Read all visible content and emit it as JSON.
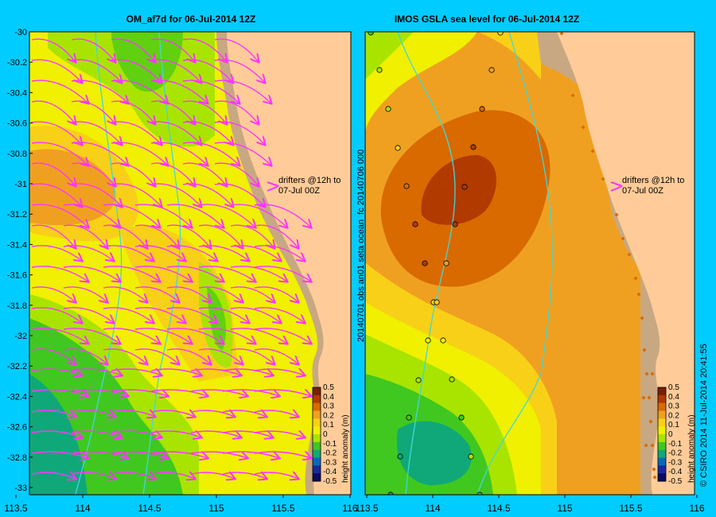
{
  "left_panel": {
    "title": "OM_af7d for 06-Jul-2014 12Z",
    "lat_ticks": [
      "-30",
      "-30.2",
      "-30.4",
      "-30.6",
      "-30.8",
      "-31",
      "-31.2",
      "-31.4",
      "-31.6",
      "-31.8",
      "-32",
      "-32.2",
      "-32.4",
      "-32.6",
      "-32.8",
      "-33"
    ],
    "lon_ticks": [
      "113.5",
      "114",
      "114.5",
      "115",
      "115.5",
      "116"
    ],
    "drifter_note": [
      "drifters @12h to",
      "07-Jul 00Z"
    ],
    "colorbar_label": "height anomaly (m)"
  },
  "right_panel": {
    "title": "IMOS GSLA sea level  for 06-Jul-2014 12Z",
    "lon_ticks": [
      "113.5",
      "114",
      "114.5",
      "115",
      "115.5",
      "116"
    ],
    "side_label": "20140701 obs an01 seta ocean_fc 20140706 000",
    "drifter_note": [
      "drifters @12h to",
      "07-Jul 00Z"
    ],
    "colorbar_label": "height anomaly (m)",
    "credit": "© CSIRO 2014   11-Jul-2014 20:41:55"
  },
  "colorbar": {
    "ticks": [
      "0.5",
      "0.4",
      "0.3",
      "0.2",
      "0.1",
      "0",
      "-0.1",
      "-0.2",
      "-0.3",
      "-0.4",
      "-0.5"
    ],
    "colors": [
      "#7a1f00",
      "#b03a00",
      "#d86a00",
      "#f0a020",
      "#f8d018",
      "#f0f000",
      "#a8e400",
      "#40c820",
      "#10a878",
      "#0a6ab8",
      "#1a28a0",
      "#0a0a60"
    ]
  },
  "colors": {
    "frame": "#00ccff",
    "land": "#ffcc99",
    "shelf": "#c8a882",
    "arrows": "#ff33ff",
    "isobath": "#40d8d8"
  }
}
